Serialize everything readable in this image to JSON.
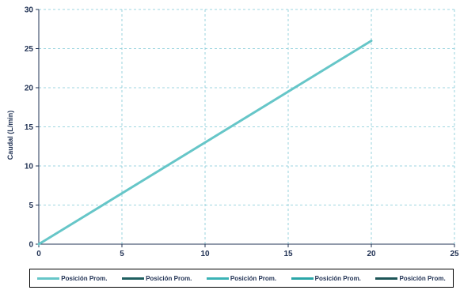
{
  "chart_data": {
    "type": "line",
    "title": "",
    "xlabel": "",
    "ylabel": "Caudal (L/min)",
    "xlim": [
      0,
      25
    ],
    "ylim": [
      0,
      30
    ],
    "xticks": [
      0,
      5,
      10,
      15,
      20,
      25
    ],
    "yticks": [
      0,
      5,
      10,
      15,
      20,
      25,
      30
    ],
    "grid": true,
    "legend_position": "bottom",
    "series": [
      {
        "name": "Posición Prom.",
        "color": "#66c6c8",
        "x": [
          0,
          20
        ],
        "y": [
          0,
          26
        ]
      },
      {
        "name": "Posición Prom.",
        "color": "#1f5f60",
        "x": [],
        "y": []
      },
      {
        "name": "Posición Prom.",
        "color": "#3bb3b6",
        "x": [],
        "y": []
      },
      {
        "name": "Posición Prom.",
        "color": "#2aa6a8",
        "x": [],
        "y": []
      },
      {
        "name": "Posición Prom.",
        "color": "#1d5557",
        "x": [],
        "y": []
      }
    ]
  },
  "colors": {
    "grid": "#7fc9d6",
    "axis": "#223355",
    "text": "#223355"
  }
}
